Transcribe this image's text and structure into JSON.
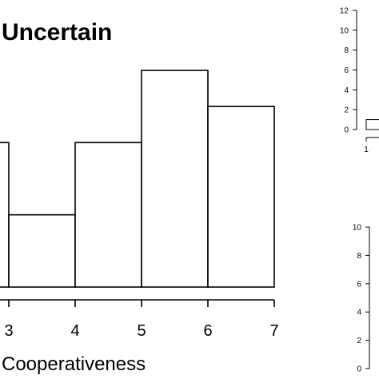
{
  "chart_data": [
    {
      "type": "bar",
      "title": "Uncertain",
      "xlabel": "Cooperativeness",
      "ylabel": "",
      "x_ticks": [
        "3",
        "4",
        "5",
        "6",
        "7"
      ],
      "xlim": [
        2,
        7
      ],
      "ylim": [
        0,
        6
      ],
      "bins": [
        {
          "x0": 2,
          "x1": 3,
          "value": 4
        },
        {
          "x0": 3,
          "x1": 4,
          "value": 2
        },
        {
          "x0": 4,
          "x1": 5,
          "value": 4
        },
        {
          "x0": 5,
          "x1": 6,
          "value": 6
        },
        {
          "x0": 6,
          "x1": 7,
          "value": 5
        }
      ]
    },
    {
      "type": "bar",
      "title": "",
      "xlabel": "",
      "ylabel": "",
      "y_ticks": [
        "0",
        "2",
        "4",
        "6",
        "8",
        "10",
        "12"
      ],
      "x_ticks": [
        "1"
      ],
      "ylim": [
        0,
        12
      ],
      "bins": [
        {
          "x0": 1,
          "x1": 2,
          "value": 1
        }
      ]
    },
    {
      "type": "bar",
      "title": "",
      "xlabel": "",
      "ylabel": "",
      "y_ticks": [
        "0",
        "2",
        "4",
        "6",
        "8",
        "10"
      ],
      "ylim": [
        0,
        10
      ],
      "bins": []
    }
  ]
}
